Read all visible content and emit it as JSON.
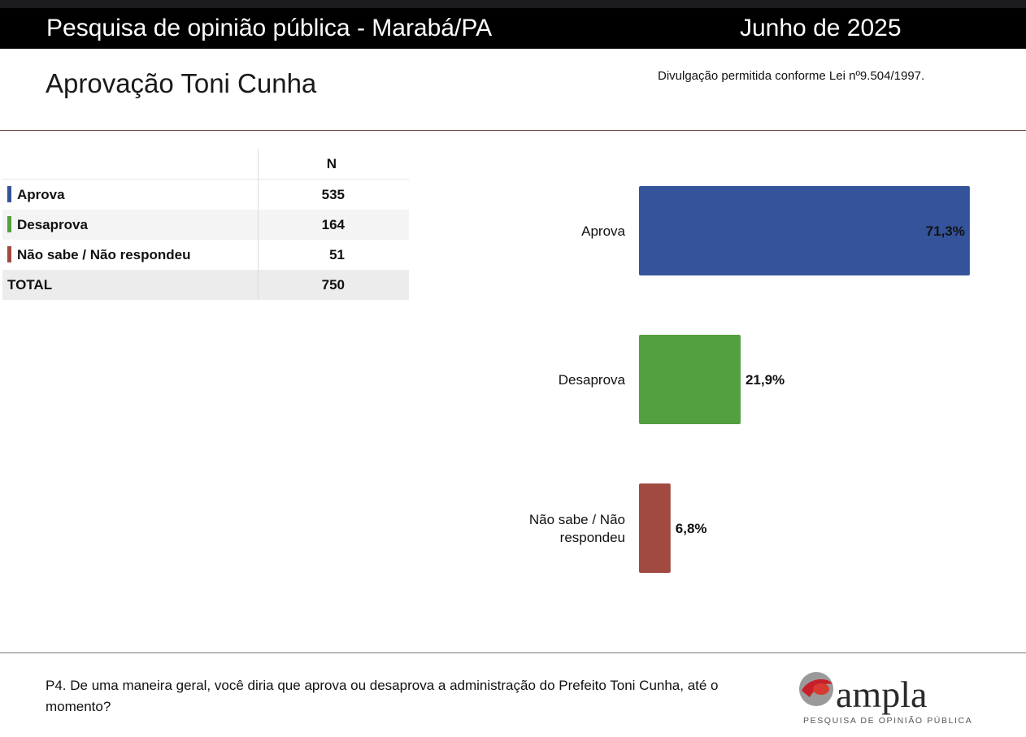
{
  "header": {
    "survey_title": "Pesquisa de opinião pública - Marabá/PA",
    "date": "Junho de 2025"
  },
  "title": "Aprovação Toni Cunha",
  "legal_note": "Divulgação permitida conforme Lei nº9.504/1997.",
  "table": {
    "column_header": "N",
    "rows": [
      {
        "label": "Aprova",
        "value": "535",
        "color": "#34539b"
      },
      {
        "label": "Desaprova",
        "value": "164",
        "color": "#53a040"
      },
      {
        "label": "Não sabe / Não respondeu",
        "value": "51",
        "color": "#a04a42"
      }
    ],
    "total": {
      "label": "TOTAL",
      "value": "750"
    }
  },
  "chart_data": {
    "type": "bar",
    "orientation": "horizontal",
    "categories": [
      "Aprova",
      "Desaprova",
      "Não sabe / Não respondeu"
    ],
    "category_lines": [
      [
        "Aprova"
      ],
      [
        "Desaprova"
      ],
      [
        "Não sabe / Não",
        "respondeu"
      ]
    ],
    "values": [
      71.3,
      21.9,
      6.8
    ],
    "value_labels": [
      "71,3%",
      "21,9%",
      "6,8%"
    ],
    "colors": [
      "#34539b",
      "#53a040",
      "#a04a42"
    ],
    "xlim": [
      0,
      75
    ],
    "grid": false,
    "legend": "none"
  },
  "question": "P4. De uma maneira geral, você diria que aprova ou desaprova a administração do Prefeito Toni Cunha, até o momento?",
  "logo": {
    "name": "ampla",
    "tagline": "PESQUISA DE OPINIÃO PÚBLICA"
  }
}
